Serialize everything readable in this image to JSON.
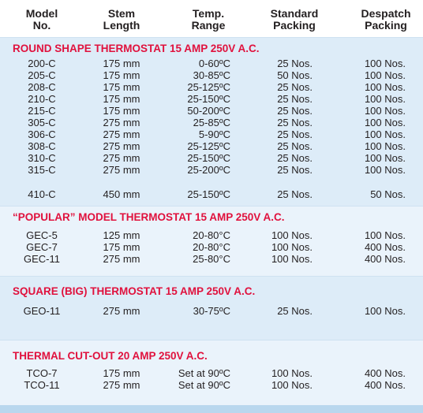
{
  "header": {
    "model": [
      "Model",
      "No."
    ],
    "stem": [
      "Stem",
      "Length"
    ],
    "temp": [
      "Temp.",
      "Range"
    ],
    "standard": [
      "Standard",
      "Packing"
    ],
    "despatch": [
      "Despatch",
      "Packing"
    ]
  },
  "sections": [
    {
      "title": "ROUND SHAPE THERMOSTAT 15 AMP 250V A.C.",
      "rows": [
        {
          "model": "200-C",
          "stem": "175 mm",
          "temp": "0-60ºC",
          "std": "25 Nos.",
          "des": "100 Nos."
        },
        {
          "model": "205-C",
          "stem": "175 mm",
          "temp": "30-85ºC",
          "std": "50 Nos.",
          "des": "100 Nos."
        },
        {
          "model": "208-C",
          "stem": "175 mm",
          "temp": "25-125ºC",
          "std": "25 Nos.",
          "des": "100 Nos."
        },
        {
          "model": "210-C",
          "stem": "175 mm",
          "temp": "25-150ºC",
          "std": "25 Nos.",
          "des": "100 Nos."
        },
        {
          "model": "215-C",
          "stem": "175 mm",
          "temp": "50-200ºC",
          "std": "25 Nos.",
          "des": "100 Nos."
        },
        {
          "model": "305-C",
          "stem": "275 mm",
          "temp": "25-85ºC",
          "std": "25 Nos.",
          "des": "100 Nos."
        },
        {
          "model": "306-C",
          "stem": "275 mm",
          "temp": "5-90ºC",
          "std": "25 Nos.",
          "des": "100 Nos."
        },
        {
          "model": "308-C",
          "stem": "275 mm",
          "temp": "25-125ºC",
          "std": "25 Nos.",
          "des": "100 Nos."
        },
        {
          "model": "310-C",
          "stem": "275 mm",
          "temp": "25-150ºC",
          "std": "25 Nos.",
          "des": "100 Nos."
        },
        {
          "model": "315-C",
          "stem": "275 mm",
          "temp": "25-200ºC",
          "std": "25 Nos.",
          "des": "100 Nos."
        },
        {
          "model": "410-C",
          "stem": "450 mm",
          "temp": "25-150ºC",
          "std": "25 Nos.",
          "des": "50 Nos."
        }
      ]
    },
    {
      "title": "“POPULAR” MODEL THERMOSTAT 15 AMP 250V A.C.",
      "rows": [
        {
          "model": "GEC-5",
          "stem": "125 mm",
          "temp": "20-80°C",
          "std": "100 Nos.",
          "des": "100 Nos."
        },
        {
          "model": "GEC-7",
          "stem": "175 mm",
          "temp": "20-80°C",
          "std": "100 Nos.",
          "des": "400 Nos."
        },
        {
          "model": "GEC-11",
          "stem": "275 mm",
          "temp": "25-80°C",
          "std": "100 Nos.",
          "des": "400 Nos."
        }
      ]
    },
    {
      "title": "SQUARE (BIG) THERMOSTAT 15 AMP 250V A.C.",
      "rows": [
        {
          "model": "GEO-11",
          "stem": "275 mm",
          "temp": "30-75ºC",
          "std": "25 Nos.",
          "des": "100 Nos."
        }
      ]
    },
    {
      "title": "THERMAL CUT-OUT 20 AMP 250V A.C.",
      "rows": [
        {
          "model": "TCO-7",
          "stem": "175 mm",
          "temp": "Set at 90ºC",
          "std": "100 Nos.",
          "des": "400 Nos."
        },
        {
          "model": "TCO-11",
          "stem": "275 mm",
          "temp": "Set at 90ºC",
          "std": "100 Nos.",
          "des": "400 Nos."
        }
      ]
    }
  ]
}
